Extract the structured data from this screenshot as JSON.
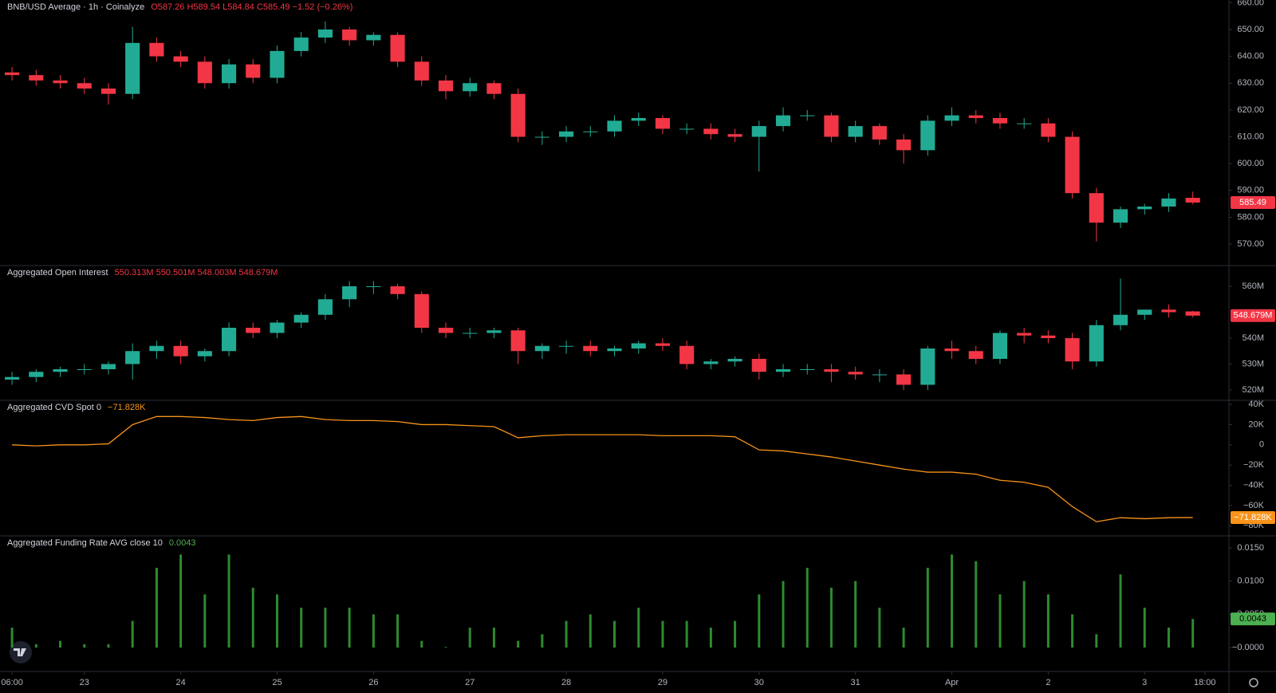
{
  "chart_data": [
    {
      "type": "candlestick",
      "title": "BNB/USD Average · 1h · Coinalyze",
      "header_values": "O587.26 H589.54 L584.84 C585.49 −1.52 (−0.26%)",
      "up_color": "#22ab94",
      "down_color": "#f23645",
      "x": [
        0,
        6,
        12,
        18,
        24,
        30,
        36,
        42,
        48,
        54,
        60,
        66,
        72,
        78,
        84,
        90,
        96,
        102,
        108,
        114,
        120,
        126,
        132,
        138,
        144,
        150,
        156,
        162,
        168,
        174,
        180,
        186,
        192,
        198,
        204,
        210,
        216,
        222,
        228,
        234,
        240,
        246,
        252,
        258,
        264,
        270,
        276,
        282,
        288,
        294
      ],
      "open": [
        634,
        633,
        631,
        630,
        628,
        626,
        645,
        640,
        638,
        630,
        637,
        632,
        642,
        647,
        650,
        646,
        648,
        638,
        631,
        627,
        630,
        626,
        610,
        610,
        612,
        612,
        616,
        617,
        613,
        613,
        611,
        610,
        614,
        618,
        618,
        610,
        614,
        609,
        605,
        616,
        618,
        617,
        615,
        615,
        610,
        589,
        578,
        583,
        584,
        587.26
      ],
      "high": [
        636,
        635,
        633,
        632,
        630,
        651,
        647,
        642,
        640,
        639,
        639,
        644,
        649,
        653,
        651,
        649,
        649,
        640,
        633,
        632,
        631,
        628,
        612,
        614,
        614,
        618,
        619,
        618,
        615,
        615,
        613,
        616,
        621,
        620,
        619,
        616,
        615,
        611,
        618,
        621,
        620,
        619,
        617,
        617,
        612,
        591,
        584,
        585,
        589,
        589.54
      ],
      "low": [
        631,
        629,
        628,
        626,
        622,
        624,
        638,
        636,
        628,
        628,
        630,
        630,
        640,
        645,
        644,
        644,
        636,
        629,
        624,
        625,
        624,
        608,
        607,
        608,
        610,
        610,
        614,
        611,
        611,
        609,
        608,
        597,
        612,
        616,
        608,
        608,
        607,
        600,
        603,
        614,
        615,
        613,
        613,
        608,
        587,
        571,
        576,
        581,
        582,
        584.84
      ],
      "close": [
        633,
        631,
        630,
        628,
        626,
        645,
        640,
        638,
        630,
        637,
        632,
        642,
        647,
        650,
        646,
        648,
        638,
        631,
        627,
        630,
        626,
        610,
        610,
        612,
        612,
        616,
        617,
        613,
        613,
        611,
        610,
        614,
        618,
        618,
        610,
        614,
        609,
        605,
        616,
        618,
        617,
        615,
        615,
        610,
        589,
        578,
        583,
        584,
        587,
        585.49
      ],
      "xlim": [
        -3,
        303
      ],
      "ylim": [
        562,
        661
      ],
      "yticks": [
        {
          "value": 570,
          "label": "570.00"
        },
        {
          "value": 580,
          "label": "580.00"
        },
        {
          "value": 590,
          "label": "590.00"
        },
        {
          "value": 600,
          "label": "600.00"
        },
        {
          "value": 610,
          "label": "610.00"
        },
        {
          "value": 620,
          "label": "620.00"
        },
        {
          "value": 630,
          "label": "630.00"
        },
        {
          "value": 640,
          "label": "640.00"
        },
        {
          "value": 650,
          "label": "650.00"
        },
        {
          "value": 660,
          "label": "660.00"
        }
      ]
    },
    {
      "type": "candlestick",
      "title": "Aggregated Open Interest",
      "header_values": "550.313M 550.501M 548.003M 548.679M",
      "up_color": "#22ab94",
      "down_color": "#f23645",
      "last_value_label": "548.679M",
      "x": [
        0,
        6,
        12,
        18,
        24,
        30,
        36,
        42,
        48,
        54,
        60,
        66,
        72,
        78,
        84,
        90,
        96,
        102,
        108,
        114,
        120,
        126,
        132,
        138,
        144,
        150,
        156,
        162,
        168,
        174,
        180,
        186,
        192,
        198,
        204,
        210,
        216,
        222,
        228,
        234,
        240,
        246,
        252,
        258,
        264,
        270,
        276,
        282,
        288,
        294
      ],
      "open": [
        524,
        525,
        527,
        528,
        528,
        530,
        535,
        537,
        533,
        535,
        544,
        542,
        546,
        549,
        555,
        560,
        560,
        557,
        544,
        542,
        542,
        543,
        535,
        537,
        537,
        535,
        536,
        538,
        537,
        530,
        531,
        532,
        527,
        528,
        528,
        527,
        526,
        526,
        522,
        536,
        535,
        532,
        542,
        541,
        540,
        531,
        545,
        549,
        551,
        550.313
      ],
      "high": [
        527,
        528,
        529,
        530,
        531,
        538,
        539,
        539,
        536,
        546,
        546,
        547,
        550,
        557,
        562,
        562,
        561,
        558,
        546,
        544,
        544,
        544,
        538,
        539,
        539,
        537,
        539,
        540,
        539,
        532,
        533,
        534,
        530,
        530,
        530,
        529,
        528,
        528,
        537,
        539,
        537,
        543,
        544,
        543,
        542,
        547,
        563,
        551,
        553,
        550.501
      ],
      "low": [
        522,
        523,
        525,
        526,
        526,
        524,
        532,
        530,
        531,
        533,
        540,
        540,
        544,
        547,
        552,
        557,
        555,
        542,
        540,
        540,
        540,
        530,
        532,
        534,
        533,
        533,
        534,
        535,
        528,
        528,
        529,
        524,
        525,
        526,
        523,
        524,
        523,
        520,
        520,
        532,
        530,
        530,
        538,
        538,
        528,
        529,
        543,
        547,
        548,
        548.003
      ],
      "close": [
        525,
        527,
        528,
        528,
        530,
        535,
        537,
        533,
        535,
        544,
        542,
        546,
        549,
        555,
        560,
        560,
        557,
        544,
        542,
        542,
        543,
        535,
        537,
        537,
        535,
        536,
        538,
        537,
        530,
        531,
        532,
        527,
        528,
        528,
        527,
        526,
        526,
        522,
        536,
        535,
        532,
        542,
        541,
        540,
        531,
        545,
        549,
        551,
        550,
        548.679
      ],
      "xlim": [
        -3,
        303
      ],
      "ylim": [
        516,
        568
      ],
      "yticks": [
        {
          "value": 520,
          "label": "520M"
        },
        {
          "value": 530,
          "label": "530M"
        },
        {
          "value": 540,
          "label": "540M"
        },
        {
          "value": 560,
          "label": "560M"
        }
      ]
    },
    {
      "type": "line",
      "title": "Aggregated CVD Spot 0",
      "color": "#f7931a",
      "last_value_label": "−71.828K",
      "x": [
        0,
        6,
        12,
        18,
        24,
        30,
        36,
        42,
        48,
        54,
        60,
        66,
        72,
        78,
        84,
        90,
        96,
        102,
        108,
        114,
        120,
        126,
        132,
        138,
        144,
        150,
        156,
        162,
        168,
        174,
        180,
        186,
        192,
        198,
        204,
        210,
        216,
        222,
        228,
        234,
        240,
        246,
        252,
        258,
        264,
        270,
        276,
        282,
        288,
        294
      ],
      "values": [
        0,
        -1,
        0,
        0,
        1,
        20,
        28,
        28,
        27,
        25,
        24,
        27,
        28,
        25,
        24,
        24,
        23,
        20,
        20,
        19,
        18,
        7,
        9,
        10,
        10,
        10,
        10,
        9,
        9,
        9,
        8,
        -5,
        -6,
        -9,
        -12,
        -16,
        -20,
        -24,
        -27,
        -27,
        -29,
        -35,
        -37,
        -42,
        -61,
        -76,
        -72,
        -73,
        -72,
        -71.828
      ],
      "xlim": [
        -3,
        303
      ],
      "ylim": [
        -90,
        44
      ],
      "yticks": [
        {
          "value": 40,
          "label": "40K"
        },
        {
          "value": 20,
          "label": "20K"
        },
        0,
        {
          "value": -20,
          "label": "−20K"
        },
        {
          "value": -40,
          "label": "−40K"
        },
        {
          "value": -60,
          "label": "−60K"
        },
        {
          "value": -80,
          "label": "−80K"
        }
      ]
    },
    {
      "type": "bar",
      "title": "Aggregated Funding Rate AVG close 10",
      "color": "#2e8b2e",
      "value_color": "#4caf50",
      "x": [
        0,
        6,
        12,
        18,
        24,
        30,
        36,
        42,
        48,
        54,
        60,
        66,
        72,
        78,
        84,
        90,
        96,
        102,
        108,
        114,
        120,
        126,
        132,
        138,
        144,
        150,
        156,
        162,
        168,
        174,
        180,
        186,
        192,
        198,
        204,
        210,
        216,
        222,
        228,
        234,
        240,
        246,
        252,
        258,
        264,
        270,
        276,
        282,
        288,
        294
      ],
      "values": [
        0.003,
        0.0005,
        0.001,
        0.0005,
        0.0005,
        0.004,
        0.012,
        0.014,
        0.008,
        0.014,
        0.009,
        0.008,
        0.006,
        0.006,
        0.006,
        0.005,
        0.005,
        0.001,
        0.0001,
        0.003,
        0.003,
        0.001,
        0.002,
        0.004,
        0.005,
        0.004,
        0.006,
        0.004,
        0.004,
        0.003,
        0.004,
        0.008,
        0.01,
        0.012,
        0.009,
        0.01,
        0.006,
        0.003,
        0.012,
        0.014,
        0.013,
        0.008,
        0.01,
        0.008,
        0.005,
        0.002,
        0.011,
        0.006,
        0.003,
        0.0043
      ],
      "xlim": [
        -3,
        303
      ],
      "ylim": [
        -0.0036,
        0.0168
      ],
      "yticks": [
        {
          "value": 0.015,
          "label": "0.0150"
        },
        {
          "value": 0.01,
          "label": "0.0100"
        },
        {
          "value": 0.005,
          "label": "0.0050"
        },
        {
          "value": 0,
          "label": "−0.0000"
        }
      ],
      "xticks": [
        {
          "value": 0,
          "label": "06:00"
        },
        {
          "value": 18,
          "label": "23"
        },
        {
          "value": 42,
          "label": "24"
        },
        {
          "value": 66,
          "label": "25"
        },
        {
          "value": 90,
          "label": "26"
        },
        {
          "value": 114,
          "label": "27"
        },
        {
          "value": 138,
          "label": "28"
        },
        {
          "value": 162,
          "label": "29"
        },
        {
          "value": 186,
          "label": "30"
        },
        {
          "value": 210,
          "label": "31"
        },
        {
          "value": 234,
          "label": "Apr"
        },
        {
          "value": 258,
          "label": "2"
        },
        {
          "value": 282,
          "label": "3"
        },
        {
          "value": 297,
          "label": "18:00"
        }
      ]
    }
  ]
}
